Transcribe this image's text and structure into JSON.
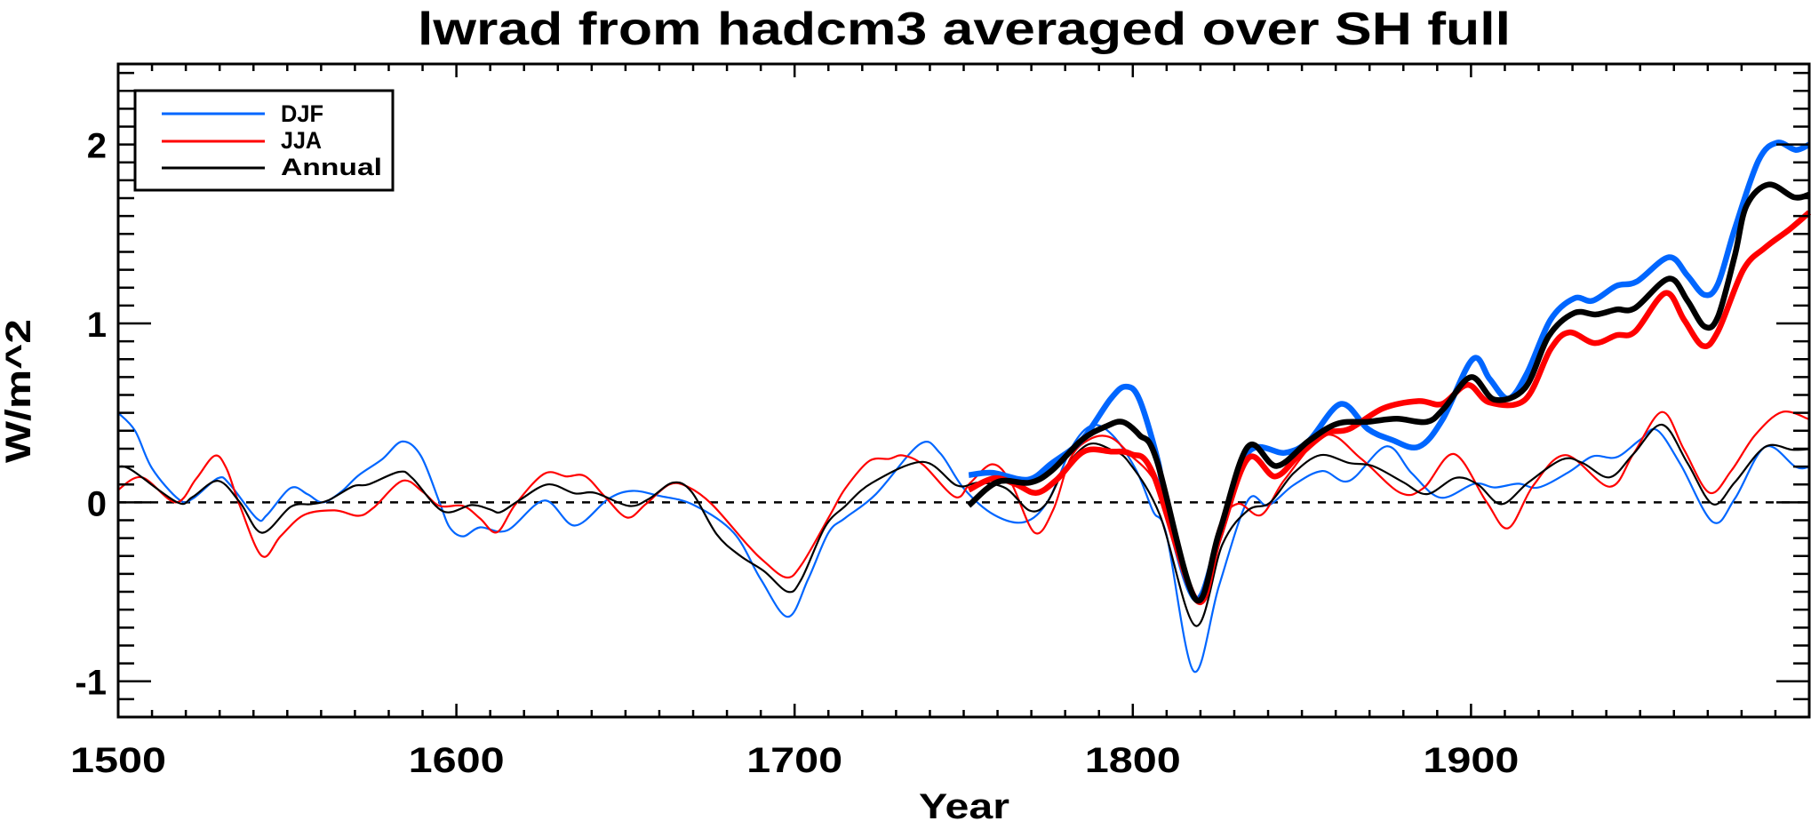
{
  "chart_data": {
    "type": "line",
    "title": "lwrad from hadcm3 averaged over SH full",
    "xlabel": "Year",
    "ylabel": "W/m^2",
    "xlim": [
      1500,
      2000
    ],
    "ylim": [
      -1.2,
      2.45
    ],
    "x_ticks": [
      1500,
      1600,
      1700,
      1800,
      1900
    ],
    "x_tick_labels": [
      "1500",
      "1600",
      "1700",
      "1800",
      "1900"
    ],
    "y_ticks": [
      -1,
      0,
      1,
      2
    ],
    "y_tick_labels": [
      "-1",
      "0",
      "1",
      "2"
    ],
    "x_minor_step": 10,
    "y_minor_step": 0.1,
    "reference_line": {
      "y": 0,
      "style": "dashed"
    },
    "grid": false,
    "legend": {
      "placement": "top-left",
      "entries": [
        {
          "label": "DJF",
          "color": "#0066ff"
        },
        {
          "label": "JJA",
          "color": "#ff0000"
        },
        {
          "label": "Annual",
          "color": "#000000"
        }
      ]
    },
    "series": [
      {
        "name": "DJF",
        "group": "thin",
        "color": "#0066ff",
        "x": [
          1500,
          1505,
          1510,
          1518,
          1522,
          1529.5,
          1533,
          1541,
          1544,
          1551,
          1556,
          1560.5,
          1566,
          1571,
          1578,
          1584,
          1589.5,
          1595,
          1598,
          1602,
          1607,
          1615,
          1626,
          1635,
          1645,
          1652,
          1660,
          1670,
          1682,
          1690,
          1698,
          1704,
          1710,
          1715,
          1724,
          1737,
          1743,
          1750,
          1759,
          1768,
          1775,
          1782,
          1788,
          1794,
          1801,
          1806,
          1810,
          1818,
          1825.5,
          1834,
          1840,
          1847.5,
          1856,
          1864,
          1875,
          1882.5,
          1891,
          1901,
          1907,
          1914,
          1920,
          1929,
          1936,
          1943,
          1950,
          1955,
          1962,
          1971.5,
          1978,
          1987,
          1996,
          2000
        ],
        "y": [
          0.5,
          0.4,
          0.19,
          0.015,
          0.02,
          0.135,
          0.1,
          -0.09,
          -0.07,
          0.08,
          0.045,
          0.0,
          0.06,
          0.15,
          0.24,
          0.34,
          0.26,
          0.0,
          -0.14,
          -0.19,
          -0.14,
          -0.157,
          0.01,
          -0.13,
          0.02,
          0.064,
          0.036,
          -0.013,
          -0.17,
          -0.43,
          -0.64,
          -0.43,
          -0.17,
          -0.087,
          0.045,
          0.325,
          0.275,
          0.078,
          -0.07,
          -0.11,
          0.01,
          0.31,
          0.43,
          0.375,
          0.18,
          -0.05,
          -0.185,
          -0.944,
          -0.465,
          0.01,
          -0.017,
          0.096,
          0.175,
          0.12,
          0.313,
          0.162,
          0.026,
          0.104,
          0.083,
          0.104,
          0.083,
          0.17,
          0.257,
          0.252,
          0.35,
          0.404,
          0.21,
          -0.11,
          0.02,
          0.31,
          0.198,
          0.198
        ]
      },
      {
        "name": "JJA",
        "group": "thin",
        "color": "#ff0000",
        "x": [
          1500,
          1507,
          1517,
          1523,
          1528.5,
          1532,
          1536,
          1542.5,
          1548,
          1555,
          1564,
          1571,
          1575.5,
          1584,
          1590,
          1595,
          1602,
          1607,
          1612,
          1617.5,
          1626,
          1632.5,
          1638,
          1644,
          1650.5,
          1656,
          1663,
          1668.5,
          1675.5,
          1686,
          1691,
          1697.5,
          1702,
          1710.5,
          1715,
          1722,
          1728,
          1732,
          1738,
          1747.5,
          1752,
          1758.5,
          1764,
          1771,
          1776.5,
          1781.5,
          1787,
          1793,
          1799,
          1808,
          1819,
          1825.5,
          1831,
          1838,
          1845,
          1857,
          1867.5,
          1879,
          1886,
          1895,
          1904.5,
          1911,
          1918.5,
          1928,
          1941,
          1948,
          1956.5,
          1963,
          1970.5,
          1977,
          1984,
          1992,
          2000
        ],
        "y": [
          0.07,
          0.14,
          0.0,
          0.13,
          0.26,
          0.19,
          -0.02,
          -0.3,
          -0.19,
          -0.07,
          -0.045,
          -0.075,
          -0.03,
          0.12,
          0.06,
          -0.02,
          -0.02,
          -0.09,
          -0.167,
          -0.01,
          0.16,
          0.145,
          0.147,
          0.03,
          -0.085,
          -0.01,
          0.1,
          0.086,
          -0.01,
          -0.236,
          -0.33,
          -0.42,
          -0.35,
          -0.07,
          0.078,
          0.23,
          0.243,
          0.262,
          0.21,
          0.03,
          0.11,
          0.213,
          0.11,
          -0.17,
          -0.04,
          0.243,
          0.35,
          0.366,
          0.27,
          0.063,
          -0.55,
          -0.135,
          -0.008,
          -0.07,
          0.13,
          0.376,
          0.244,
          0.054,
          0.08,
          0.27,
          0.005,
          -0.144,
          0.096,
          0.264,
          0.087,
          0.27,
          0.505,
          0.294,
          0.054,
          0.178,
          0.376,
          0.505,
          0.464
        ]
      },
      {
        "name": "Annual",
        "group": "thin",
        "color": "#000000",
        "x": [
          1500,
          1504,
          1517.5,
          1522,
          1529.5,
          1536,
          1542.5,
          1551,
          1557,
          1562,
          1569.5,
          1574,
          1583,
          1587,
          1596,
          1604.5,
          1610,
          1613,
          1618.5,
          1627,
          1635,
          1641,
          1651,
          1657,
          1664,
          1669.5,
          1677,
          1684,
          1691,
          1698,
          1702,
          1709,
          1715,
          1723,
          1738,
          1748,
          1754.5,
          1762.5,
          1769.5,
          1774.5,
          1780,
          1787,
          1794,
          1799,
          1808,
          1818.5,
          1826.5,
          1834,
          1840.5,
          1847.5,
          1855.5,
          1864,
          1871,
          1880,
          1887,
          1895.5,
          1902,
          1909,
          1917,
          1927,
          1933,
          1941,
          1948,
          1956.5,
          1964,
          1971.5,
          1978,
          1987,
          1995,
          2000
        ],
        "y": [
          0.2,
          0.18,
          0.0,
          0.03,
          0.12,
          0.0,
          -0.17,
          -0.025,
          -0.01,
          0.01,
          0.09,
          0.1,
          0.17,
          0.135,
          -0.05,
          -0.015,
          -0.04,
          -0.055,
          0.01,
          0.1,
          0.05,
          0.053,
          -0.02,
          0.02,
          0.11,
          0.06,
          -0.18,
          -0.3,
          -0.385,
          -0.5,
          -0.43,
          -0.137,
          -0.02,
          0.11,
          0.226,
          0.094,
          0.11,
          0.078,
          -0.046,
          -0.005,
          0.193,
          0.325,
          0.29,
          0.22,
          -0.07,
          -0.69,
          -0.234,
          -0.045,
          -0.003,
          0.162,
          0.264,
          0.22,
          0.203,
          0.112,
          0.046,
          0.137,
          0.1,
          -0.01,
          0.112,
          0.24,
          0.22,
          0.14,
          0.27,
          0.434,
          0.22,
          -0.01,
          0.112,
          0.31,
          0.294,
          0.297
        ]
      },
      {
        "name": "DJF (thick)",
        "group": "thick",
        "color": "#0066ff",
        "x": [
          1751.5,
          1758.5,
          1769,
          1776,
          1785,
          1793.5,
          1798,
          1802,
          1807.5,
          1810,
          1818.5,
          1825.5,
          1834,
          1845,
          1852,
          1861.5,
          1869.5,
          1876.5,
          1884.5,
          1891.5,
          1900.5,
          1905.5,
          1911,
          1916.5,
          1923.5,
          1930.5,
          1936,
          1943,
          1949,
          1958.5,
          1964,
          1969,
          1973,
          1978,
          1985,
          1990.5,
          1996,
          2000
        ],
        "y": [
          0.152,
          0.165,
          0.127,
          0.218,
          0.35,
          0.58,
          0.647,
          0.573,
          0.226,
          -0.04,
          -0.54,
          -0.2,
          0.277,
          0.277,
          0.343,
          0.55,
          0.41,
          0.35,
          0.31,
          0.46,
          0.8,
          0.69,
          0.58,
          0.72,
          1.02,
          1.14,
          1.127,
          1.21,
          1.234,
          1.37,
          1.267,
          1.16,
          1.22,
          1.53,
          1.91,
          2.01,
          1.97,
          2.0
        ]
      },
      {
        "name": "JJA (thick)",
        "group": "thick",
        "color": "#ff0000",
        "x": [
          1751.5,
          1759,
          1765.5,
          1771.5,
          1777.5,
          1785.5,
          1793.5,
          1799.5,
          1806,
          1819,
          1825.5,
          1834,
          1842,
          1849,
          1857,
          1864,
          1874,
          1884.5,
          1891.5,
          1899,
          1905.5,
          1916,
          1923.5,
          1929,
          1936.5,
          1943,
          1948.5,
          1957.5,
          1963,
          1968.5,
          1973,
          1980.5,
          1987,
          1994,
          2000
        ],
        "y": [
          0.07,
          0.135,
          0.1,
          0.053,
          0.127,
          0.284,
          0.284,
          0.27,
          0.16,
          -0.55,
          -0.2,
          0.244,
          0.145,
          0.26,
          0.384,
          0.41,
          0.525,
          0.566,
          0.55,
          0.657,
          0.558,
          0.574,
          0.855,
          0.95,
          0.89,
          0.934,
          0.954,
          1.17,
          1.02,
          0.875,
          0.954,
          1.3,
          1.424,
          1.523,
          1.62
        ]
      },
      {
        "name": "Annual (thick)",
        "group": "thick",
        "color": "#000000",
        "x": [
          1751.5,
          1760,
          1769.5,
          1776,
          1785,
          1792,
          1797,
          1802,
          1807,
          1818.5,
          1825.5,
          1834,
          1842.5,
          1852,
          1860.5,
          1869.5,
          1878,
          1887,
          1892,
          1900,
          1907,
          1916,
          1923,
          1930.5,
          1937,
          1943,
          1948.5,
          1958.5,
          1964,
          1969,
          1973,
          1978,
          1981.5,
          1988,
          1995.5,
          2000
        ],
        "y": [
          -0.018,
          0.114,
          0.11,
          0.177,
          0.35,
          0.424,
          0.449,
          0.375,
          0.24,
          -0.54,
          -0.17,
          0.31,
          0.203,
          0.343,
          0.44,
          0.45,
          0.467,
          0.45,
          0.525,
          0.7,
          0.574,
          0.64,
          0.93,
          1.058,
          1.05,
          1.078,
          1.086,
          1.25,
          1.127,
          0.983,
          1.036,
          1.38,
          1.66,
          1.776,
          1.705,
          1.72
        ]
      }
    ]
  }
}
